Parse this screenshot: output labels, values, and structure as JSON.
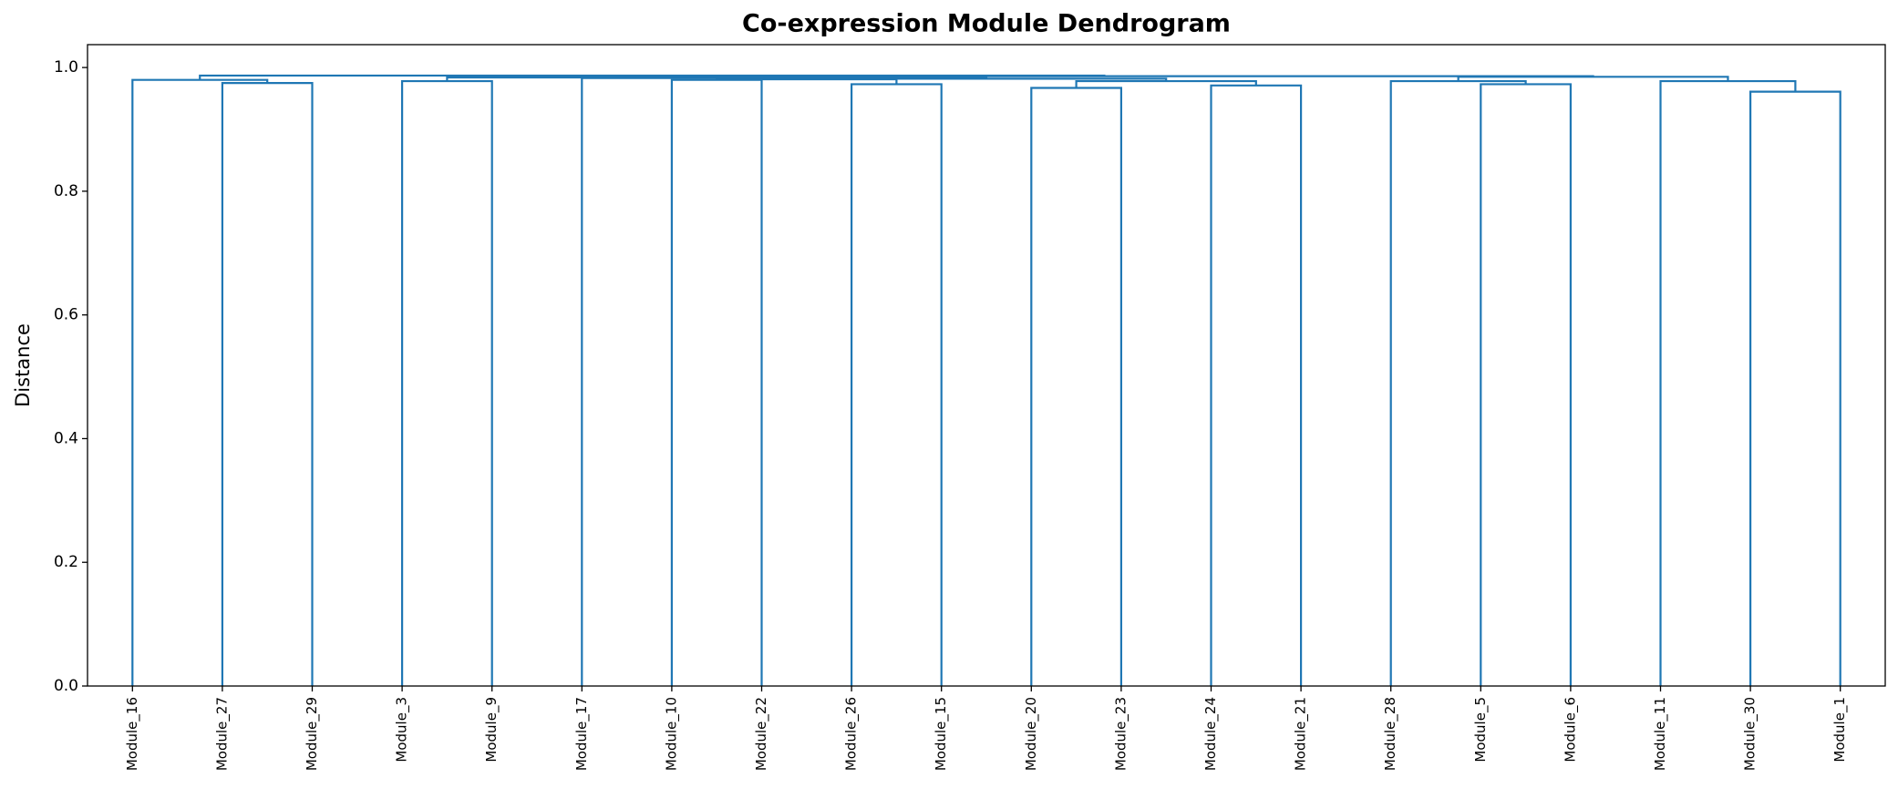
{
  "chart_data": {
    "type": "dendrogram",
    "title": "Co-expression Module Dendrogram",
    "y_label": "Distance",
    "leaves": [
      "Module_16",
      "Module_27",
      "Module_29",
      "Module_3",
      "Module_9",
      "Module_17",
      "Module_10",
      "Module_22",
      "Module_26",
      "Module_15",
      "Module_20",
      "Module_23",
      "Module_24",
      "Module_21",
      "Module_28",
      "Module_5",
      "Module_6",
      "Module_11",
      "Module_30",
      "Module_1"
    ],
    "links": [
      [
        1,
        2,
        0.975
      ],
      [
        0,
        20,
        0.98
      ],
      [
        3,
        4,
        0.978
      ],
      [
        6,
        7,
        0.98
      ],
      [
        8,
        9,
        0.973
      ],
      [
        10,
        11,
        0.967
      ],
      [
        12,
        13,
        0.971
      ],
      [
        25,
        26,
        0.978
      ],
      [
        23,
        24,
        0.981
      ],
      [
        28,
        27,
        0.982
      ],
      [
        5,
        29,
        0.983
      ],
      [
        22,
        30,
        0.984
      ],
      [
        15,
        16,
        0.973
      ],
      [
        14,
        32,
        0.978
      ],
      [
        18,
        19,
        0.961
      ],
      [
        17,
        34,
        0.978
      ],
      [
        33,
        35,
        0.985
      ],
      [
        31,
        36,
        0.986
      ],
      [
        21,
        37,
        0.987
      ]
    ],
    "color": "#1f77b4",
    "ylim": [
      0,
      1.037
    ],
    "yticks": [
      {
        "value": 0,
        "label": "0.0"
      },
      0.2,
      0.4,
      0.6,
      0.8,
      {
        "value": 1,
        "label": "1.0"
      }
    ]
  }
}
